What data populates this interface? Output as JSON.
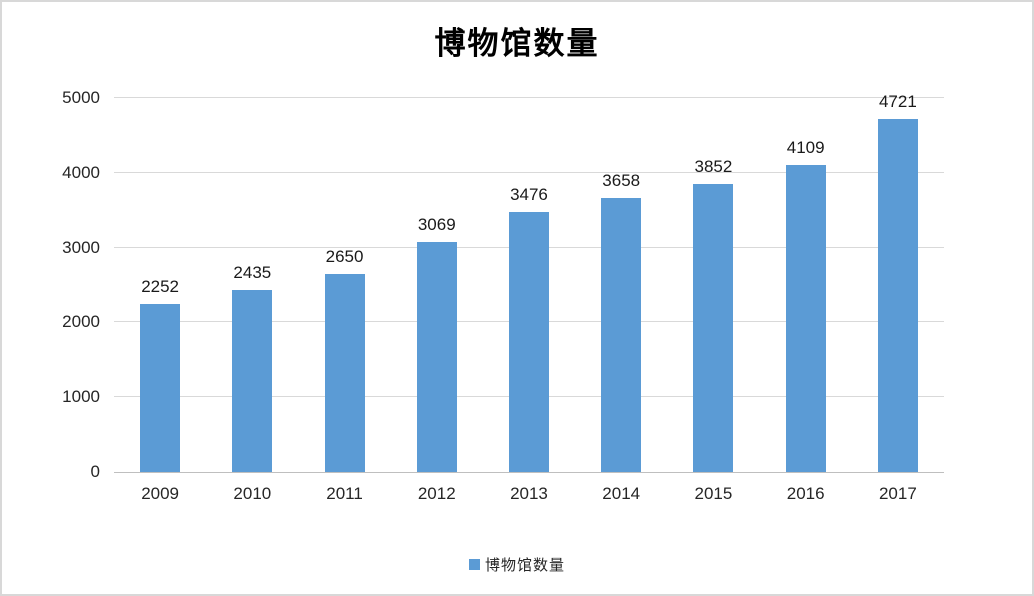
{
  "title": "博物馆数量",
  "legend": {
    "label": "博物馆数量",
    "swatch": "blue-square"
  },
  "colors": {
    "bar": "#5b9bd5",
    "gridline": "#d9d9d9",
    "axis_line": "#bfbfbf",
    "text": "#262626",
    "chart_border": "#d8d8d8",
    "background": "#ffffff"
  },
  "chart_data": {
    "type": "bar",
    "title": "博物馆数量",
    "categories": [
      "2009",
      "2010",
      "2011",
      "2012",
      "2013",
      "2014",
      "2015",
      "2016",
      "2017"
    ],
    "values": [
      2252,
      2435,
      2650,
      3069,
      3476,
      3658,
      3852,
      4109,
      4721
    ],
    "series_name": "博物馆数量",
    "xlabel": "",
    "ylabel": "",
    "ylim": [
      0,
      5000
    ],
    "yticks": [
      0,
      1000,
      2000,
      3000,
      4000,
      5000
    ],
    "grid": true,
    "data_labels": true,
    "legend_position": "bottom"
  }
}
